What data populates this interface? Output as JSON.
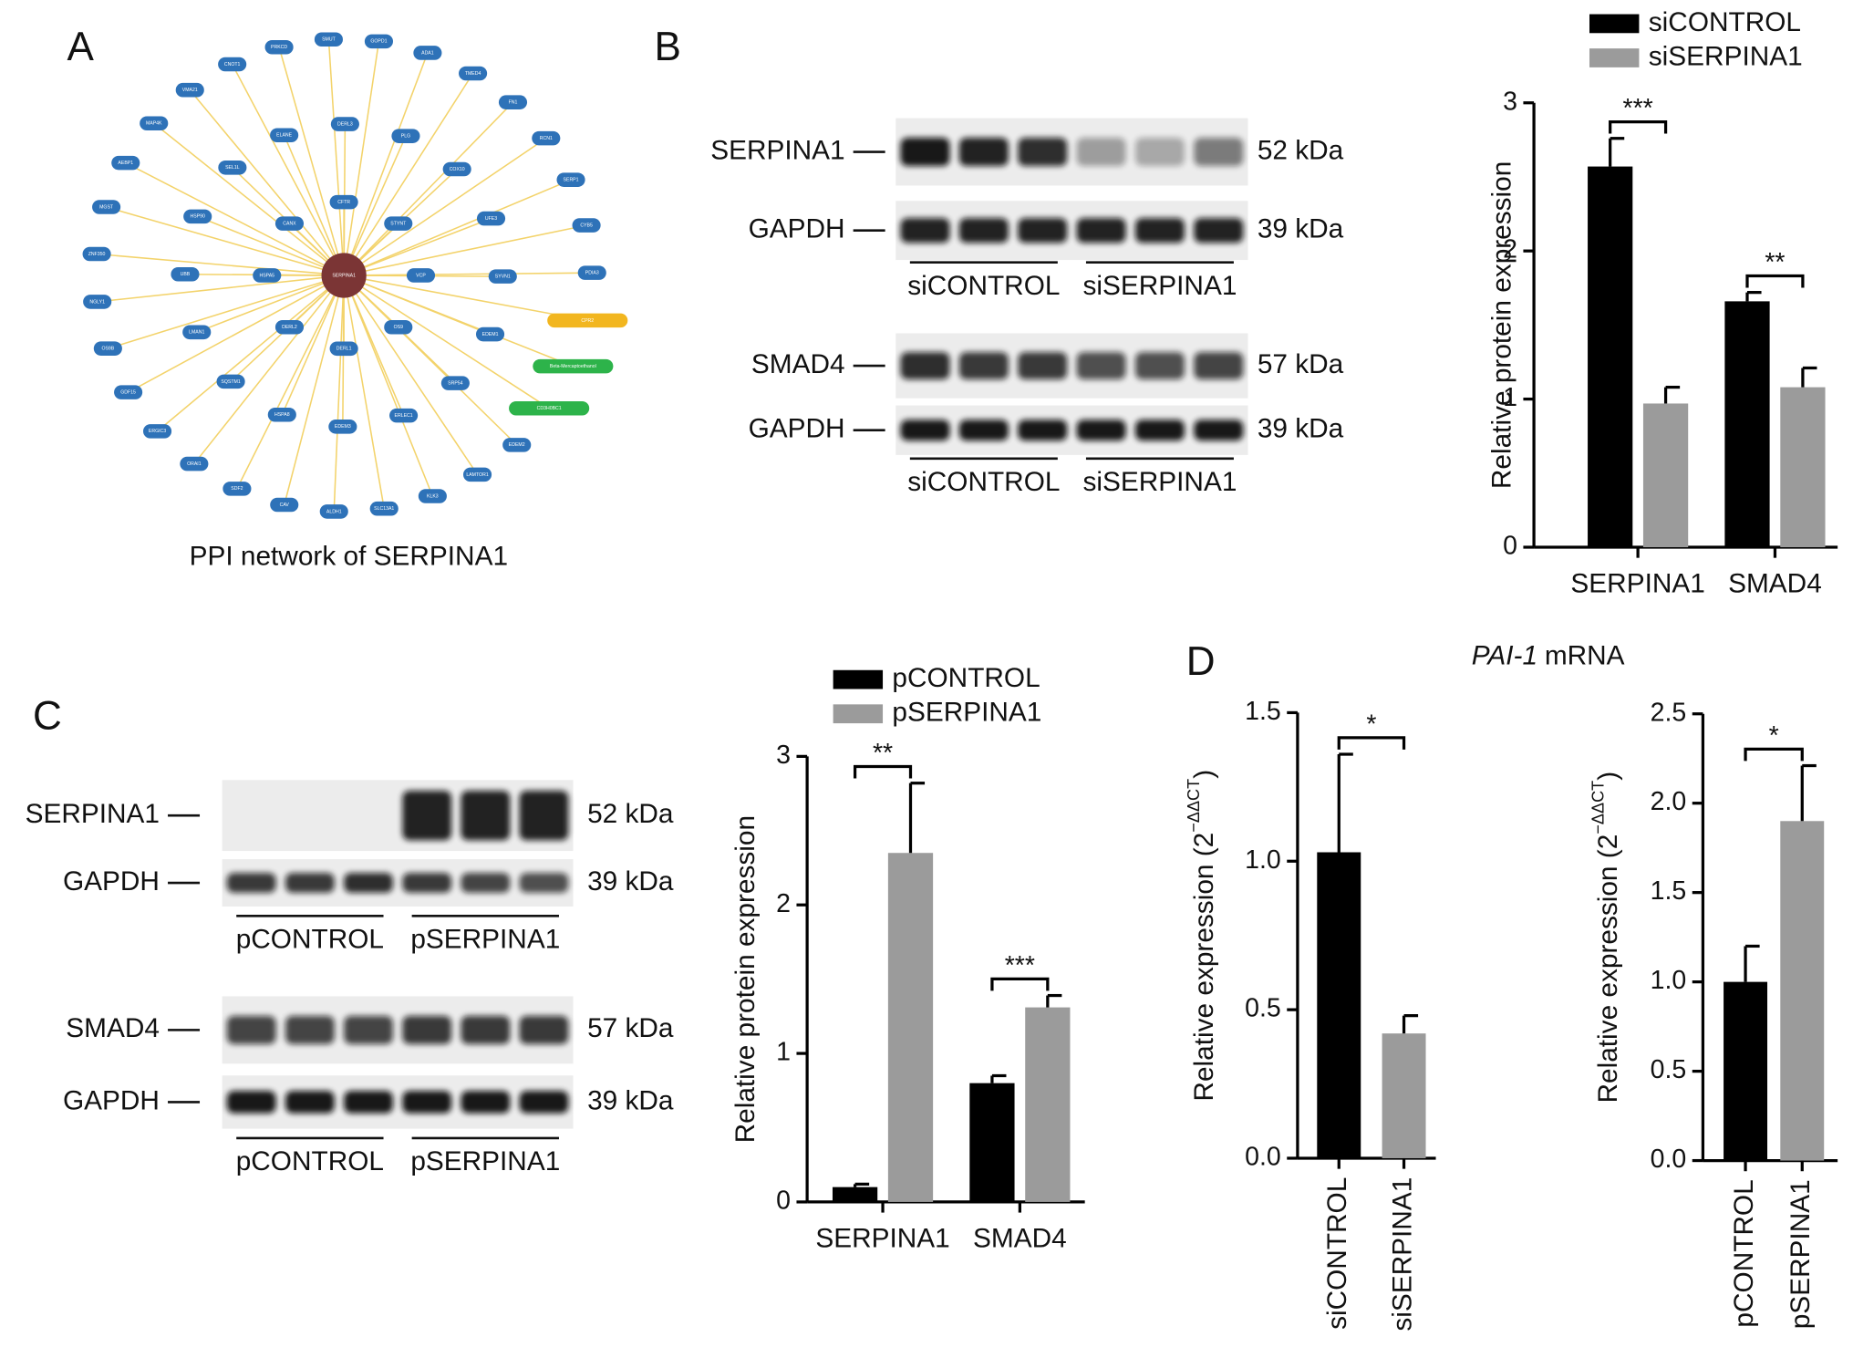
{
  "figure": {
    "letters": [
      "A",
      "B",
      "C",
      "D"
    ],
    "network": {
      "title": "PPI network of SERPINA1",
      "center": "SERPINA1",
      "center_color": "#7b3535",
      "node_color": "#2e72b8",
      "edge_color": "#f3d36b",
      "nodes": [
        "VCP",
        "OS9",
        "DERL1",
        "DERL2",
        "HSPA5",
        "CANX",
        "CFTR",
        "STYNT",
        "EDEM1",
        "SRP54",
        "ERLEC1",
        "EDEM3",
        "HSPA8",
        "SQSTM1",
        "LMAN1",
        "UBB",
        "HSP90",
        "SEL1L",
        "ELANE",
        "DERL3",
        "PLG",
        "COX10",
        "UFE3",
        "SYVN1",
        "EDEM2",
        "LAMTOR1",
        "KLK3",
        "SLC13A1",
        "ALDH1",
        "CAV",
        "SDF2",
        "ORAI1",
        "ERGIC3",
        "GDF15",
        "OS9B",
        "NGLY1",
        "ZNF350",
        "MGST",
        "AEBP1",
        "MAP4K",
        "VMA21",
        "CNOT1",
        "PRKCD",
        "SMUT",
        "GOPD1",
        "ADA1",
        "TMED4",
        "FN1",
        "RCN1",
        "SERP1",
        "CYB5",
        "PDIA3"
      ],
      "special_nodes": [
        {
          "label": "CPR2",
          "color": "#f2b61f"
        },
        {
          "label": "Beta-Mercaptoethanol",
          "color": "#2db34a"
        },
        {
          "label": "CD3H0BC1",
          "color": "#2db34a"
        }
      ]
    },
    "blots_b": [
      {
        "rows": [
          {
            "protein": "SERPINA1",
            "kda": "52 kDa"
          },
          {
            "protein": "GAPDH",
            "kda": "39 kDa"
          }
        ],
        "groups": [
          "siCONTROL",
          "siSERPINA1"
        ]
      },
      {
        "rows": [
          {
            "protein": "SMAD4",
            "kda": "57 kDa"
          },
          {
            "protein": "GAPDH",
            "kda": "39 kDa"
          }
        ],
        "groups": [
          "siCONTROL",
          "siSERPINA1"
        ]
      }
    ],
    "blots_c": [
      {
        "rows": [
          {
            "protein": "SERPINA1",
            "kda": "52 kDa"
          },
          {
            "protein": "GAPDH",
            "kda": "39 kDa"
          }
        ],
        "groups": [
          "pCONTROL",
          "pSERPINA1"
        ]
      },
      {
        "rows": [
          {
            "protein": "SMAD4",
            "kda": "57 kDa"
          },
          {
            "protein": "GAPDH",
            "kda": "39 kDa"
          }
        ],
        "groups": [
          "pCONTROL",
          "pSERPINA1"
        ]
      }
    ],
    "panel_d_title": {
      "gene": "PAI-1",
      "text": "mRNA"
    }
  },
  "chart_data": [
    {
      "type": "grouped_bar",
      "y_label": "Relative protein expression",
      "categories": [
        "SERPINA1",
        "SMAD4"
      ],
      "series": [
        {
          "name": "siCONTROL",
          "color": "#000000",
          "values": [
            2.57,
            1.66
          ],
          "errors": [
            0.19,
            0.06
          ]
        },
        {
          "name": "siSERPINA1",
          "color": "#9b9b9b",
          "values": [
            0.97,
            1.08
          ],
          "errors": [
            0.11,
            0.13
          ]
        }
      ],
      "significance": [
        "***",
        "**"
      ],
      "ylim": [
        0,
        3
      ],
      "yticks": [
        0,
        1,
        2,
        3
      ]
    },
    {
      "type": "grouped_bar",
      "y_label": "Relative protein expression",
      "categories": [
        "SERPINA1",
        "SMAD4"
      ],
      "series": [
        {
          "name": "pCONTROL",
          "color": "#000000",
          "values": [
            0.1,
            0.8
          ],
          "errors": [
            0.02,
            0.05
          ]
        },
        {
          "name": "pSERPINA1",
          "color": "#9b9b9b",
          "values": [
            2.35,
            1.31
          ],
          "errors": [
            0.47,
            0.08
          ]
        }
      ],
      "significance": [
        "**",
        "***"
      ],
      "ylim": [
        0,
        3
      ],
      "yticks": [
        0,
        1,
        2,
        3
      ]
    },
    {
      "type": "bar",
      "y_label": {
        "base": "Relative expression (2",
        "sup": "−ΔΔCT",
        "close": ")"
      },
      "categories": [
        "siCONTROL",
        "siSERPINA1"
      ],
      "values": [
        1.03,
        0.42
      ],
      "errors": [
        0.33,
        0.06
      ],
      "colors": [
        "#000000",
        "#9b9b9b"
      ],
      "significance": "*",
      "ylim": [
        0,
        1.5
      ],
      "yticks": [
        {
          "value": 0,
          "label": "0.0"
        },
        0.5,
        {
          "value": 1,
          "label": "1.0"
        },
        1.5
      ]
    },
    {
      "type": "bar",
      "y_label": {
        "base": "Relative expression (2",
        "sup": "−ΔΔCT",
        "close": ")"
      },
      "categories": [
        "pCONTROL",
        "pSERPINA1"
      ],
      "values": [
        1.0,
        1.9
      ],
      "errors": [
        0.2,
        0.31
      ],
      "colors": [
        "#000000",
        "#9b9b9b"
      ],
      "significance": "*",
      "ylim": [
        0,
        2.5
      ],
      "yticks": [
        {
          "value": 0,
          "label": "0.0"
        },
        0.5,
        {
          "value": 1,
          "label": "1.0"
        },
        1.5,
        {
          "value": 2,
          "label": "2.0"
        },
        2.5
      ]
    }
  ]
}
